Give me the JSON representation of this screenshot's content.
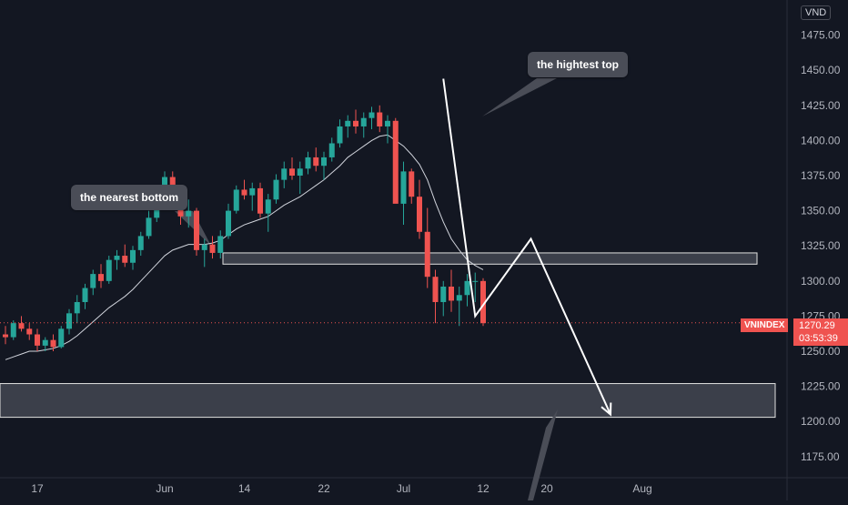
{
  "currency_label": "VND",
  "symbol": "VNINDEX",
  "last_price": "1270.29",
  "countdown": "03:53:39",
  "annotations": {
    "top_label": "the hightest top",
    "bottom_label": "the nearest bottom"
  },
  "colors": {
    "background": "#131722",
    "up": "#26a69a",
    "down": "#ef5350",
    "moving_average": "#d1d4dc",
    "zone_fill": "#5d606b",
    "projection": "#ffffff"
  },
  "chart_data": {
    "type": "candlestick",
    "title": "",
    "xlabel": "",
    "ylabel": "",
    "ylim": [
      1160,
      1500
    ],
    "y_ticks": [
      1175,
      1200,
      1225,
      1250,
      1275,
      1300,
      1325,
      1350,
      1375,
      1400,
      1425,
      1450,
      1475
    ],
    "x_ticks": [
      {
        "label": "17",
        "index": 4
      },
      {
        "label": "Jun",
        "index": 20
      },
      {
        "label": "14",
        "index": 30
      },
      {
        "label": "22",
        "index": 40
      },
      {
        "label": "Jul",
        "index": 50
      },
      {
        "label": "12",
        "index": 60
      },
      {
        "label": "20",
        "index": 68
      },
      {
        "label": "Aug",
        "index": 80
      }
    ],
    "grid": false,
    "series": [
      {
        "kind": "ohlc",
        "points": [
          [
            1262,
            1268,
            1255,
            1260
          ],
          [
            1260,
            1272,
            1258,
            1270
          ],
          [
            1270,
            1275,
            1264,
            1266
          ],
          [
            1266,
            1270,
            1258,
            1262
          ],
          [
            1262,
            1266,
            1250,
            1254
          ],
          [
            1254,
            1260,
            1250,
            1258
          ],
          [
            1258,
            1262,
            1250,
            1253
          ],
          [
            1253,
            1268,
            1252,
            1266
          ],
          [
            1266,
            1280,
            1262,
            1277
          ],
          [
            1277,
            1290,
            1270,
            1285
          ],
          [
            1285,
            1298,
            1280,
            1295
          ],
          [
            1295,
            1308,
            1290,
            1305
          ],
          [
            1305,
            1312,
            1295,
            1300
          ],
          [
            1300,
            1318,
            1298,
            1315
          ],
          [
            1315,
            1322,
            1308,
            1318
          ],
          [
            1318,
            1326,
            1310,
            1313
          ],
          [
            1313,
            1325,
            1308,
            1322
          ],
          [
            1322,
            1335,
            1318,
            1332
          ],
          [
            1332,
            1350,
            1330,
            1345
          ],
          [
            1345,
            1365,
            1342,
            1360
          ],
          [
            1360,
            1378,
            1355,
            1374
          ],
          [
            1374,
            1378,
            1355,
            1358
          ],
          [
            1358,
            1362,
            1340,
            1346
          ],
          [
            1346,
            1358,
            1338,
            1350
          ],
          [
            1350,
            1352,
            1318,
            1322
          ],
          [
            1322,
            1330,
            1310,
            1326
          ],
          [
            1326,
            1332,
            1316,
            1320
          ],
          [
            1320,
            1336,
            1316,
            1332
          ],
          [
            1332,
            1355,
            1330,
            1350
          ],
          [
            1350,
            1368,
            1348,
            1365
          ],
          [
            1365,
            1372,
            1358,
            1361
          ],
          [
            1361,
            1370,
            1350,
            1366
          ],
          [
            1366,
            1370,
            1345,
            1348
          ],
          [
            1348,
            1362,
            1335,
            1358
          ],
          [
            1358,
            1376,
            1355,
            1372
          ],
          [
            1372,
            1385,
            1366,
            1380
          ],
          [
            1380,
            1388,
            1372,
            1375
          ],
          [
            1375,
            1385,
            1362,
            1380
          ],
          [
            1380,
            1392,
            1376,
            1388
          ],
          [
            1388,
            1395,
            1378,
            1382
          ],
          [
            1382,
            1392,
            1372,
            1388
          ],
          [
            1388,
            1402,
            1385,
            1398
          ],
          [
            1398,
            1415,
            1395,
            1410
          ],
          [
            1410,
            1418,
            1402,
            1414
          ],
          [
            1414,
            1422,
            1405,
            1410
          ],
          [
            1410,
            1420,
            1402,
            1416
          ],
          [
            1416,
            1424,
            1408,
            1420
          ],
          [
            1420,
            1425,
            1406,
            1410
          ],
          [
            1410,
            1418,
            1398,
            1414
          ],
          [
            1414,
            1416,
            1380,
            1355
          ],
          [
            1355,
            1385,
            1340,
            1378
          ],
          [
            1378,
            1380,
            1355,
            1360
          ],
          [
            1360,
            1372,
            1330,
            1335
          ],
          [
            1335,
            1352,
            1295,
            1303
          ],
          [
            1303,
            1308,
            1270,
            1285
          ],
          [
            1285,
            1300,
            1275,
            1296
          ],
          [
            1296,
            1308,
            1278,
            1286
          ],
          [
            1286,
            1296,
            1268,
            1290
          ],
          [
            1290,
            1305,
            1282,
            1300
          ],
          [
            1300,
            1306,
            1285,
            1300
          ],
          [
            1300,
            1302,
            1268,
            1270
          ]
        ]
      },
      {
        "kind": "moving_average",
        "values": [
          1244,
          1246,
          1248,
          1250,
          1250,
          1251,
          1252,
          1254,
          1257,
          1261,
          1266,
          1271,
          1276,
          1281,
          1285,
          1289,
          1294,
          1300,
          1306,
          1312,
          1318,
          1322,
          1324,
          1326,
          1326,
          1326,
          1327,
          1329,
          1333,
          1337,
          1340,
          1342,
          1344,
          1346,
          1350,
          1354,
          1357,
          1360,
          1364,
          1368,
          1372,
          1377,
          1382,
          1388,
          1392,
          1396,
          1400,
          1403,
          1404,
          1400,
          1396,
          1390,
          1383,
          1372,
          1356,
          1342,
          1330,
          1322,
          1315,
          1311,
          1308
        ]
      }
    ],
    "zones": [
      {
        "from": 1312,
        "to": 1320
      },
      {
        "from": 1203,
        "to": 1227
      }
    ],
    "projection_path": [
      [
        55,
        1444
      ],
      [
        59,
        1275
      ],
      [
        66,
        1330
      ],
      [
        76,
        1205
      ]
    ],
    "last_value": 1270.29
  }
}
